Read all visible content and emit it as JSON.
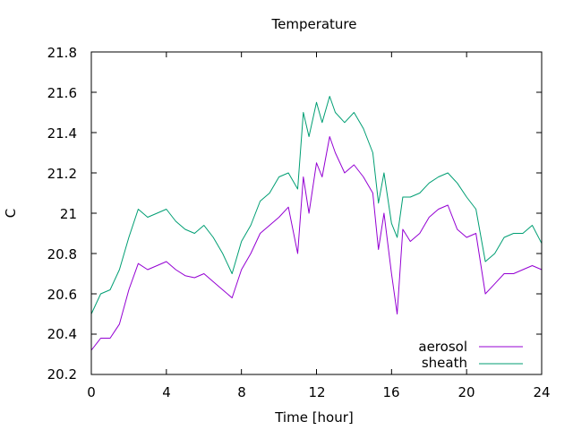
{
  "chart_data": {
    "type": "line",
    "title": "Temperature",
    "xlabel": "Time [hour]",
    "ylabel": "C",
    "xlim": [
      0,
      24
    ],
    "ylim": [
      20.2,
      21.8
    ],
    "x_ticks": [
      0,
      4,
      8,
      12,
      16,
      20,
      24
    ],
    "x_tick_labels": [
      "0",
      "4",
      "8",
      "12",
      "16",
      "20",
      "24"
    ],
    "y_ticks": [
      20.2,
      20.4,
      20.6,
      20.8,
      21.0,
      21.2,
      21.4,
      21.6,
      21.8
    ],
    "y_tick_labels": [
      "20.2",
      "20.4",
      "20.6",
      "20.8",
      "21",
      "21.2",
      "21.4",
      "21.6",
      "21.8"
    ],
    "grid": false,
    "legend_position": "bottom-right",
    "series": [
      {
        "name": "aerosol",
        "color": "#9400d3",
        "x": [
          0,
          0.5,
          1,
          1.5,
          2,
          2.5,
          3,
          3.5,
          4,
          4.5,
          5,
          5.5,
          6,
          6.5,
          7,
          7.5,
          8,
          8.5,
          9,
          9.5,
          10,
          10.5,
          11,
          11.3,
          11.6,
          12,
          12.3,
          12.7,
          13,
          13.5,
          14,
          14.5,
          15,
          15.3,
          15.6,
          16,
          16.3,
          16.6,
          17,
          17.5,
          18,
          18.5,
          19,
          19.5,
          20,
          20.5,
          21,
          21.5,
          22,
          22.5,
          23,
          23.5,
          24
        ],
        "y": [
          20.32,
          20.38,
          20.38,
          20.45,
          20.62,
          20.75,
          20.72,
          20.74,
          20.76,
          20.72,
          20.69,
          20.68,
          20.7,
          20.66,
          20.62,
          20.58,
          20.72,
          20.8,
          20.9,
          20.94,
          20.98,
          21.03,
          20.8,
          21.18,
          21.0,
          21.25,
          21.18,
          21.38,
          21.3,
          21.2,
          21.24,
          21.18,
          21.1,
          20.82,
          21.0,
          20.7,
          20.5,
          20.92,
          20.86,
          20.9,
          20.98,
          21.02,
          21.04,
          20.92,
          20.88,
          20.9,
          20.6,
          20.65,
          20.7,
          20.7,
          20.72,
          20.74,
          20.72
        ]
      },
      {
        "name": "sheath",
        "color": "#009e73",
        "x": [
          0,
          0.5,
          1,
          1.5,
          2,
          2.5,
          3,
          3.5,
          4,
          4.5,
          5,
          5.5,
          6,
          6.5,
          7,
          7.5,
          8,
          8.5,
          9,
          9.5,
          10,
          10.5,
          11,
          11.3,
          11.6,
          12,
          12.3,
          12.7,
          13,
          13.5,
          14,
          14.5,
          15,
          15.3,
          15.6,
          16,
          16.3,
          16.6,
          17,
          17.5,
          18,
          18.5,
          19,
          19.5,
          20,
          20.5,
          21,
          21.5,
          22,
          22.5,
          23,
          23.5,
          24
        ],
        "y": [
          20.5,
          20.6,
          20.62,
          20.72,
          20.88,
          21.02,
          20.98,
          21.0,
          21.02,
          20.96,
          20.92,
          20.9,
          20.94,
          20.88,
          20.8,
          20.7,
          20.86,
          20.94,
          21.06,
          21.1,
          21.18,
          21.2,
          21.12,
          21.5,
          21.38,
          21.55,
          21.45,
          21.58,
          21.5,
          21.45,
          21.5,
          21.42,
          21.3,
          21.05,
          21.2,
          20.95,
          20.88,
          21.08,
          21.08,
          21.1,
          21.15,
          21.18,
          21.2,
          21.15,
          21.08,
          21.02,
          20.76,
          20.8,
          20.88,
          20.9,
          20.9,
          20.94,
          20.85
        ]
      }
    ]
  }
}
